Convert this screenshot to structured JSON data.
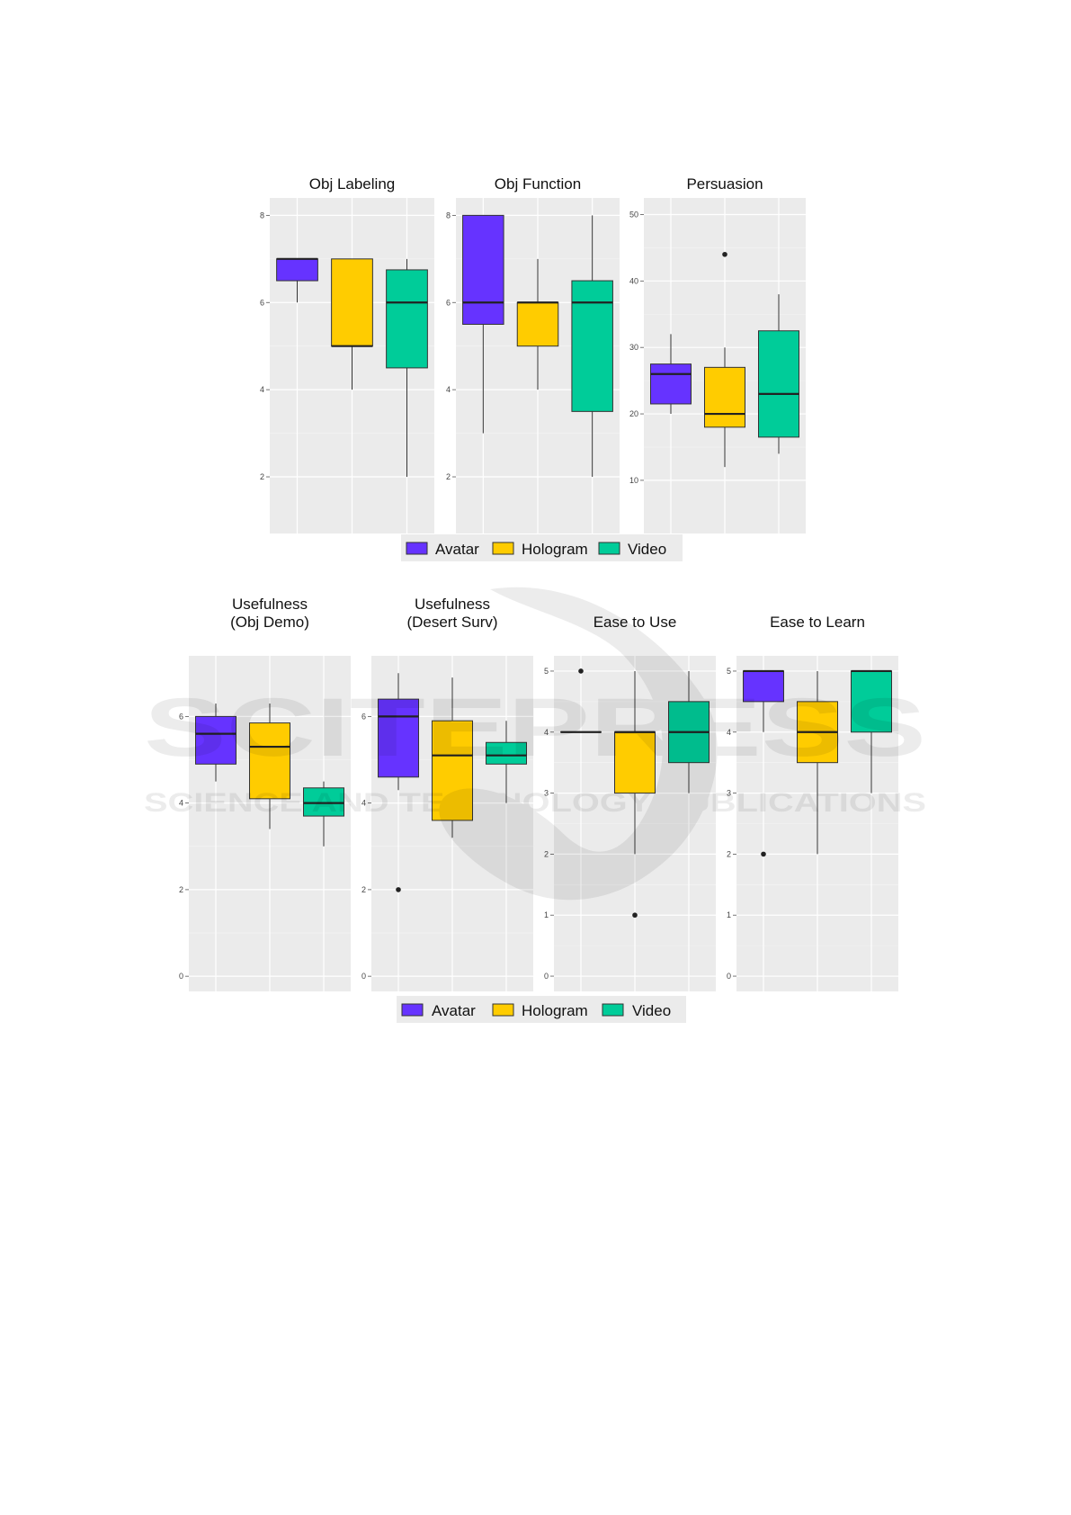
{
  "legend": {
    "entries": [
      {
        "name": "Avatar",
        "color": "#6633ff"
      },
      {
        "name": "Hologram",
        "color": "#ffcc00"
      },
      {
        "name": "Video",
        "color": "#00cc99"
      }
    ]
  },
  "watermark": {
    "main": "SCITEPRESS",
    "sub": "SCIENCE AND TECHNOLOGY PUBLICATIONS"
  },
  "chart_data": [
    {
      "type": "boxplot",
      "title": "Obj Labeling",
      "categories": [
        "Avatar",
        "Hologram",
        "Video"
      ],
      "ylim": [
        0.7,
        8.4
      ],
      "yticks": [
        2,
        4,
        6,
        8
      ],
      "grid": true,
      "series": [
        {
          "name": "Avatar",
          "min": 6,
          "q1": 6.5,
          "median": 7,
          "q3": 7,
          "max": 7,
          "outliers": []
        },
        {
          "name": "Hologram",
          "min": 4,
          "q1": 5,
          "median": 5,
          "q3": 7,
          "max": 7,
          "outliers": []
        },
        {
          "name": "Video",
          "min": 2,
          "q1": 4.5,
          "median": 6,
          "q3": 6.75,
          "max": 7,
          "outliers": []
        }
      ]
    },
    {
      "type": "boxplot",
      "title": "Obj Function",
      "categories": [
        "Avatar",
        "Hologram",
        "Video"
      ],
      "ylim": [
        0.7,
        8.4
      ],
      "yticks": [
        2,
        4,
        6,
        8
      ],
      "grid": true,
      "series": [
        {
          "name": "Avatar",
          "min": 3,
          "q1": 5.5,
          "median": 6,
          "q3": 8,
          "max": 8,
          "outliers": []
        },
        {
          "name": "Hologram",
          "min": 4,
          "q1": 5,
          "median": 6,
          "q3": 6,
          "max": 7,
          "outliers": []
        },
        {
          "name": "Video",
          "min": 2,
          "q1": 3.5,
          "median": 6,
          "q3": 6.5,
          "max": 8,
          "outliers": []
        }
      ]
    },
    {
      "type": "boxplot",
      "title": "Persuasion",
      "categories": [
        "Avatar",
        "Hologram",
        "Video"
      ],
      "ylim": [
        2,
        52.5
      ],
      "yticks": [
        10,
        20,
        30,
        40,
        50
      ],
      "grid": true,
      "series": [
        {
          "name": "Avatar",
          "min": 20,
          "q1": 21.5,
          "median": 26,
          "q3": 27.5,
          "max": 32,
          "outliers": []
        },
        {
          "name": "Hologram",
          "min": 12,
          "q1": 18,
          "median": 20,
          "q3": 27,
          "max": 30,
          "outliers": [
            44
          ]
        },
        {
          "name": "Video",
          "min": 14,
          "q1": 16.5,
          "median": 23,
          "q3": 32.5,
          "max": 38,
          "outliers": []
        }
      ]
    },
    {
      "type": "boxplot",
      "title": "Usefulness\n(Obj Demo)",
      "categories": [
        "Avatar",
        "Hologram",
        "Video"
      ],
      "ylim": [
        -0.35,
        7.4
      ],
      "yticks": [
        0,
        2,
        4,
        6
      ],
      "grid": true,
      "series": [
        {
          "name": "Avatar",
          "min": 4.5,
          "q1": 4.9,
          "median": 5.6,
          "q3": 6,
          "max": 6.3,
          "outliers": []
        },
        {
          "name": "Hologram",
          "min": 3.4,
          "q1": 4.1,
          "median": 5.3,
          "q3": 5.85,
          "max": 6.3,
          "outliers": []
        },
        {
          "name": "Video",
          "min": 3,
          "q1": 3.7,
          "median": 4,
          "q3": 4.35,
          "max": 4.5,
          "outliers": []
        }
      ]
    },
    {
      "type": "boxplot",
      "title": "Usefulness\n(Desert Surv)",
      "categories": [
        "Avatar",
        "Hologram",
        "Video"
      ],
      "ylim": [
        -0.35,
        7.4
      ],
      "yticks": [
        0,
        2,
        4,
        6
      ],
      "grid": true,
      "series": [
        {
          "name": "Avatar",
          "min": 4.3,
          "q1": 4.6,
          "median": 6,
          "q3": 6.4,
          "max": 7,
          "outliers": [
            2
          ]
        },
        {
          "name": "Hologram",
          "min": 3.2,
          "q1": 3.6,
          "median": 5.1,
          "q3": 5.9,
          "max": 6.9,
          "outliers": []
        },
        {
          "name": "Video",
          "min": 4,
          "q1": 4.9,
          "median": 5.1,
          "q3": 5.4,
          "max": 5.9,
          "outliers": []
        }
      ]
    },
    {
      "type": "boxplot",
      "title": "Ease to Use",
      "categories": [
        "Avatar",
        "Hologram",
        "Video"
      ],
      "ylim": [
        -0.25,
        5.25
      ],
      "yticks": [
        0,
        1,
        2,
        3,
        4,
        5
      ],
      "grid": true,
      "series": [
        {
          "name": "Avatar",
          "min": 4,
          "q1": 4,
          "median": 4,
          "q3": 4,
          "max": 4,
          "outliers": [
            5
          ]
        },
        {
          "name": "Hologram",
          "min": 2,
          "q1": 3,
          "median": 4,
          "q3": 4,
          "max": 5,
          "outliers": [
            1
          ]
        },
        {
          "name": "Video",
          "min": 3,
          "q1": 3.5,
          "median": 4,
          "q3": 4.5,
          "max": 5,
          "outliers": []
        }
      ]
    },
    {
      "type": "boxplot",
      "title": "Ease to Learn",
      "categories": [
        "Avatar",
        "Hologram",
        "Video"
      ],
      "ylim": [
        -0.25,
        5.25
      ],
      "yticks": [
        0,
        1,
        2,
        3,
        4,
        5
      ],
      "grid": true,
      "series": [
        {
          "name": "Avatar",
          "min": 4,
          "q1": 4.5,
          "median": 5,
          "q3": 5,
          "max": 5,
          "outliers": [
            2
          ]
        },
        {
          "name": "Hologram",
          "min": 2,
          "q1": 3.5,
          "median": 4,
          "q3": 4.5,
          "max": 5,
          "outliers": []
        },
        {
          "name": "Video",
          "min": 3,
          "q1": 4,
          "median": 5,
          "q3": 5,
          "max": 5,
          "outliers": []
        }
      ]
    }
  ]
}
